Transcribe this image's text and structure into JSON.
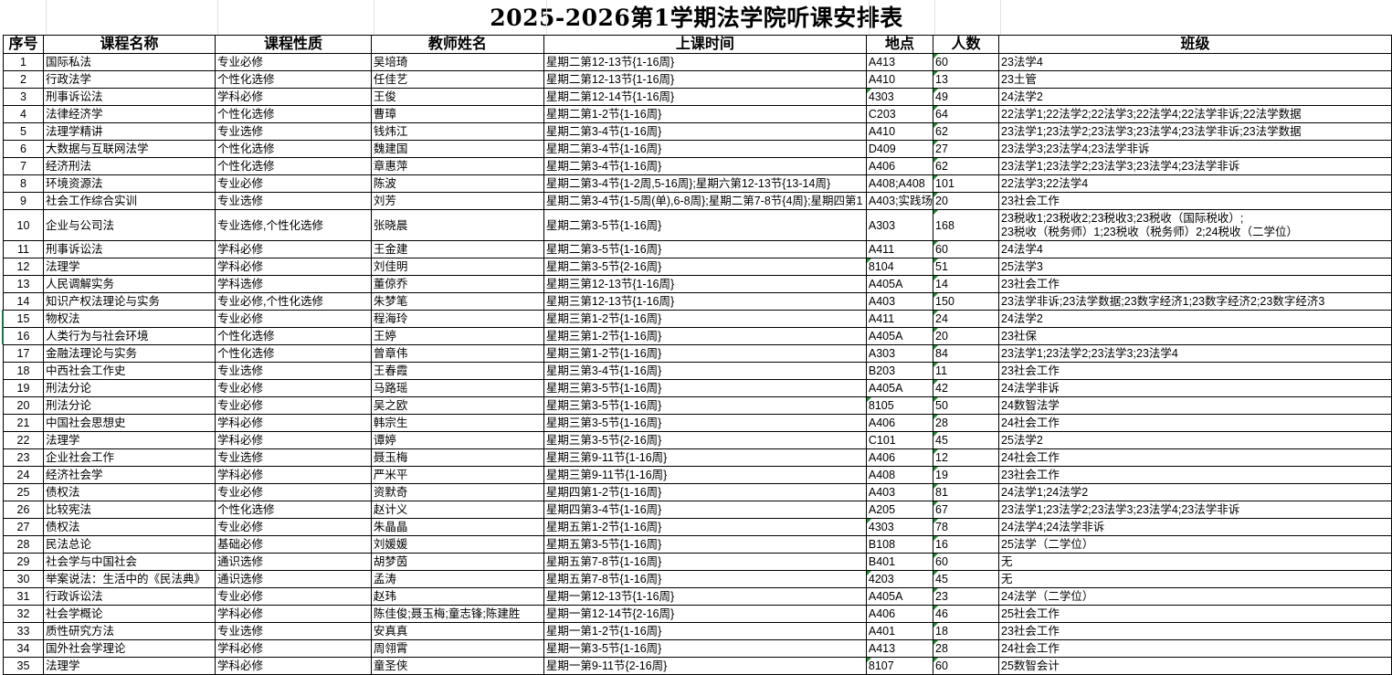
{
  "title": "2025-2026第1学期法学院听课安排表",
  "headers": [
    "序号",
    "课程名称",
    "课程性质",
    "教师姓名",
    "上课时间",
    "地点",
    "人数",
    "班级"
  ],
  "rows": [
    [
      "1",
      "国际私法",
      "专业必修",
      "吴培琦",
      "星期二第12-13节{1-16周}",
      "A413",
      "60",
      "23法学4"
    ],
    [
      "2",
      "行政法学",
      "个性化选修",
      "任佳艺",
      "星期二第12-13节{1-16周}",
      "A410",
      "13",
      "23土管"
    ],
    [
      "3",
      "刑事诉讼法",
      "学科必修",
      "王俊",
      "星期二第12-14节{1-16周}",
      "4303",
      "49",
      "24法学2"
    ],
    [
      "4",
      "法律经济学",
      "个性化选修",
      "曹璋",
      "星期二第1-2节{1-16周}",
      "C203",
      "64",
      "22法学1;22法学2;22法学3;22法学4;22法学非诉;22法学数据"
    ],
    [
      "5",
      "法理学精讲",
      "专业选修",
      "钱炜江",
      "星期二第3-4节{1-16周}",
      "A410",
      "62",
      "23法学1;23法学2;23法学3;23法学4;23法学非诉;23法学数据"
    ],
    [
      "6",
      "大数据与互联网法学",
      "个性化选修",
      "魏建国",
      "星期二第3-4节{1-16周}",
      "D409",
      "27",
      "23法学3;23法学4;23法学非诉"
    ],
    [
      "7",
      "经济刑法",
      "个性化选修",
      "章惠萍",
      "星期二第3-4节{1-16周}",
      "A406",
      "62",
      "23法学1;23法学2;23法学3;23法学4;23法学非诉"
    ],
    [
      "8",
      "环境资源法",
      "专业必修",
      "陈波",
      "星期二第3-4节{1-2周,5-16周};星期六第12-13节{13-14周}",
      "A408;A408",
      "101",
      "22法学3;22法学4"
    ],
    [
      "9",
      "社会工作综合实训",
      "专业选修",
      "刘芳",
      "星期二第3-4节{1-5周(单),6-8周};星期二第7-8节{4周};星期四第1",
      "A403;实践场",
      "20",
      "23社会工作"
    ],
    [
      "10",
      "企业与公司法",
      "专业选修,个性化选修",
      "张晓晨",
      "星期二第3-5节{1-16周}",
      "A303",
      "168",
      "23税收1;23税收2;23税收3;23税收（国际税收）;\n23税收（税务师）1;23税收（税务师）2;24税收（二学位）"
    ],
    [
      "11",
      "刑事诉讼法",
      "学科必修",
      "王金建",
      "星期二第3-5节{1-16周}",
      "A411",
      "60",
      "24法学4"
    ],
    [
      "12",
      "法理学",
      "学科必修",
      "刘佳明",
      "星期二第3-5节{2-16周}",
      "8104",
      "51",
      "25法学3"
    ],
    [
      "13",
      "人民调解实务",
      "学科选修",
      "董倞乔",
      "星期三第12-13节{1-16周}",
      "A405A",
      "14",
      "23社会工作"
    ],
    [
      "14",
      "知识产权法理论与实务",
      "专业必修,个性化选修",
      "朱梦笔",
      "星期三第12-13节{1-16周}",
      "A403",
      "150",
      "23法学非诉;23法学数据;23数字经济1;23数字经济2;23数字经济3"
    ],
    [
      "15",
      "物权法",
      "专业必修",
      "程海玲",
      "星期三第1-2节{1-16周}",
      "A411",
      "24",
      "24法学2"
    ],
    [
      "16",
      "人类行为与社会环境",
      "个性化选修",
      "王婷",
      "星期三第1-2节{1-16周}",
      "A405A",
      "20",
      "23社保"
    ],
    [
      "17",
      "金融法理论与实务",
      "个性化选修",
      "曾章伟",
      "星期三第1-2节{1-16周}",
      "A303",
      "84",
      "23法学1;23法学2;23法学3;23法学4"
    ],
    [
      "18",
      "中西社会工作史",
      "专业选修",
      "王春霞",
      "星期三第3-4节{1-16周}",
      "B203",
      "11",
      "23社会工作"
    ],
    [
      "19",
      "刑法分论",
      "专业必修",
      "马路瑶",
      "星期三第3-5节{1-16周}",
      "A405A",
      "42",
      "24法学非诉"
    ],
    [
      "20",
      "刑法分论",
      "专业必修",
      "吴之欧",
      "星期三第3-5节{1-16周}",
      "8105",
      "50",
      "24数智法学"
    ],
    [
      "21",
      "中国社会思想史",
      "学科必修",
      "韩宗生",
      "星期三第3-5节{1-16周}",
      "A406",
      "28",
      "24社会工作"
    ],
    [
      "22",
      "法理学",
      "学科必修",
      "谭婷",
      "星期三第3-5节{2-16周}",
      "C101",
      "45",
      "25法学2"
    ],
    [
      "23",
      "企业社会工作",
      "专业选修",
      "聂玉梅",
      "星期三第9-11节{1-16周}",
      "A406",
      "12",
      "24社会工作"
    ],
    [
      "24",
      "经济社会学",
      "学科必修",
      "严米平",
      "星期三第9-11节{1-16周}",
      "A408",
      "19",
      "23社会工作"
    ],
    [
      "25",
      "债权法",
      "专业必修",
      "资默奇",
      "星期四第1-2节{1-16周}",
      "A403",
      "81",
      "24法学1;24法学2"
    ],
    [
      "26",
      "比较宪法",
      "个性化选修",
      "赵计义",
      "星期四第3-4节{1-16周}",
      "A205",
      "67",
      "23法学1;23法学2;23法学3;23法学4;23法学非诉"
    ],
    [
      "27",
      "债权法",
      "专业必修",
      "朱晶晶",
      "星期五第1-2节{1-16周}",
      "4303",
      "78",
      "24法学4;24法学非诉"
    ],
    [
      "28",
      "民法总论",
      "基础必修",
      "刘媛媛",
      "星期五第3-5节{1-16周}",
      "B108",
      "16",
      "25法学（二学位）"
    ],
    [
      "29",
      "社会学与中国社会",
      "通识选修",
      "胡梦茵",
      "星期五第7-8节{1-16周}",
      "B401",
      "60",
      "无"
    ],
    [
      "30",
      "举案说法：生活中的《民法典》",
      "通识选修",
      "孟涛",
      "星期五第7-8节{1-16周}",
      "4203",
      "45",
      "无"
    ],
    [
      "31",
      "行政诉讼法",
      "专业必修",
      "赵玮",
      "星期一第12-13节{1-16周}",
      "A405A",
      "23",
      "24法学（二学位）"
    ],
    [
      "32",
      "社会学概论",
      "学科必修",
      "陈佳俊;聂玉梅;童志锋;陈建胜",
      "星期一第12-14节{2-16周}",
      "A406",
      "46",
      "25社会工作"
    ],
    [
      "33",
      "质性研究方法",
      "专业选修",
      "安真真",
      "星期一第1-2节{1-16周}",
      "A401",
      "18",
      "23社会工作"
    ],
    [
      "34",
      "国外社会学理论",
      "学科必修",
      "周翎霄",
      "星期一第3-5节{1-16周}",
      "A413",
      "28",
      "24社会工作"
    ],
    [
      "35",
      "法理学",
      "学科必修",
      "童圣侠",
      "星期一第9-11节{2-16周}",
      "8107",
      "60",
      "25数智会计"
    ]
  ],
  "colors": {
    "grid": "#000000",
    "number_as_text_flag": "#1a8a2a",
    "row_selection": "#217346"
  }
}
